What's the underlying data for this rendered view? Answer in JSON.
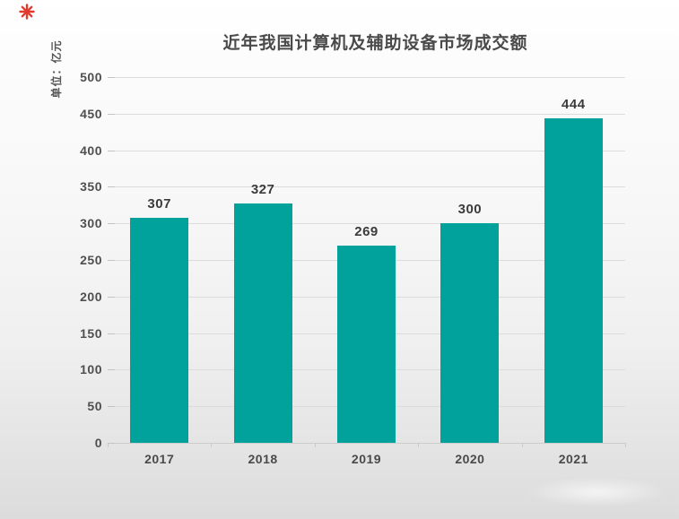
{
  "chart_data": {
    "type": "bar",
    "title": "近年我国计算机及辅助设备市场成交额",
    "ylabel": "单位：亿元",
    "xlabel": "",
    "categories": [
      "2017",
      "2018",
      "2019",
      "2020",
      "2021"
    ],
    "values": [
      307,
      327,
      269,
      300,
      444
    ],
    "value_labels": [
      "307",
      "327",
      "269",
      "300",
      "444"
    ],
    "ylim": [
      0,
      500
    ],
    "yticks": [
      0,
      50,
      100,
      150,
      200,
      250,
      300,
      350,
      400,
      450,
      500
    ],
    "grid": true,
    "legend_position": "none",
    "colors": {
      "bar": "#00a29b",
      "title_text": "#4a4a4a",
      "tick_text": "#4f4f4f",
      "gridline": "#dcdcdc",
      "asterisk": "#e23a2d"
    }
  }
}
